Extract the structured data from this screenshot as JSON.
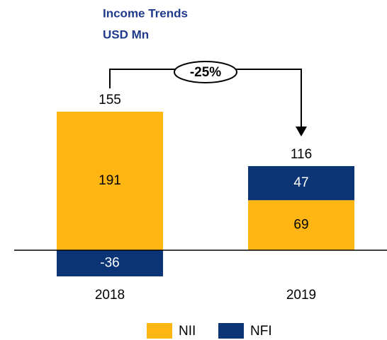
{
  "chart_data": {
    "type": "stacked_bar",
    "title": "Income Trends",
    "subtitle": "USD Mn",
    "categories": [
      "2018",
      "2019"
    ],
    "series": [
      {
        "name": "NII",
        "color": "#ffb612",
        "values": [
          191,
          69
        ]
      },
      {
        "name": "NFI",
        "color": "#0b3477",
        "values": [
          -36,
          47
        ]
      }
    ],
    "totals": [
      155,
      116
    ],
    "annotation": "-25%"
  }
}
